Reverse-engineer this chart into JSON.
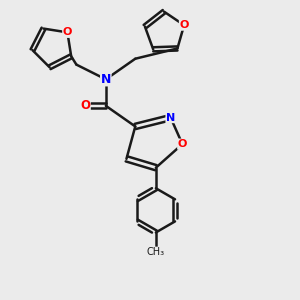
{
  "background_color": "#ebebeb",
  "bond_color": "#1a1a1a",
  "atom_colors": {
    "N": "#0000ff",
    "O": "#ff0000",
    "C": "#1a1a1a"
  },
  "bond_width": 1.8,
  "figsize": [
    3.0,
    3.0
  ],
  "dpi": 100
}
